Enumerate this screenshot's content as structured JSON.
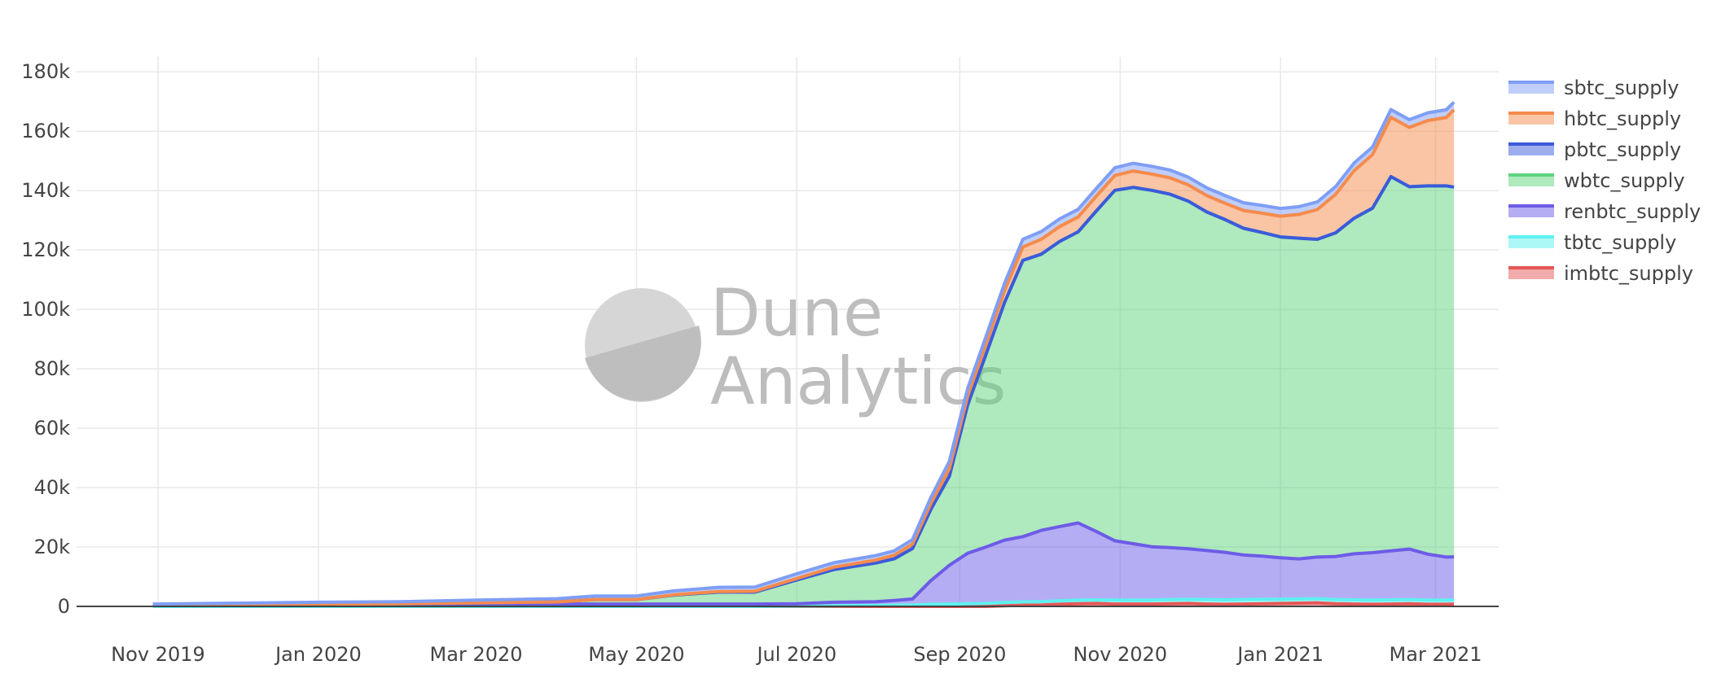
{
  "watermark": {
    "line1": "Dune",
    "line2": "Analytics"
  },
  "chart_data": {
    "type": "area",
    "stacked": true,
    "grid": true,
    "legend_position": "right",
    "xlabel": "",
    "ylabel": "",
    "x_range": [
      "2019-10-01",
      "2021-03-25"
    ],
    "ylim": [
      0,
      185000
    ],
    "y_ticks": [
      0,
      20000,
      40000,
      60000,
      80000,
      100000,
      120000,
      140000,
      160000,
      180000
    ],
    "y_tick_labels": [
      "0",
      "20k",
      "40k",
      "60k",
      "80k",
      "100k",
      "120k",
      "140k",
      "160k",
      "180k"
    ],
    "x_ticks": [
      "2019-11-01",
      "2020-01-01",
      "2020-03-01",
      "2020-05-01",
      "2020-07-01",
      "2020-09-01",
      "2020-11-01",
      "2021-01-01",
      "2021-03-01"
    ],
    "x_tick_labels": [
      "Nov 2019",
      "Jan 2020",
      "Mar 2020",
      "May 2020",
      "Jul 2020",
      "Sep 2020",
      "Nov 2020",
      "Jan 2021",
      "Mar 2021"
    ],
    "x": [
      "2019-10-30",
      "2019-12-01",
      "2020-01-01",
      "2020-02-01",
      "2020-03-01",
      "2020-04-01",
      "2020-04-15",
      "2020-05-01",
      "2020-05-15",
      "2020-06-01",
      "2020-06-15",
      "2020-07-01",
      "2020-07-15",
      "2020-07-31",
      "2020-08-07",
      "2020-08-14",
      "2020-08-21",
      "2020-08-28",
      "2020-09-04",
      "2020-09-11",
      "2020-09-18",
      "2020-09-25",
      "2020-10-02",
      "2020-10-09",
      "2020-10-16",
      "2020-10-23",
      "2020-10-30",
      "2020-11-06",
      "2020-11-13",
      "2020-11-20",
      "2020-11-27",
      "2020-12-04",
      "2020-12-11",
      "2020-12-18",
      "2020-12-25",
      "2021-01-01",
      "2021-01-08",
      "2021-01-15",
      "2021-01-22",
      "2021-01-29",
      "2021-02-05",
      "2021-02-12",
      "2021-02-19",
      "2021-02-26",
      "2021-03-05",
      "2021-03-08"
    ],
    "series": [
      {
        "name": "imbtc_supply",
        "color": "#e45756",
        "values": [
          0,
          0,
          0,
          0,
          0,
          0,
          0,
          0,
          0,
          0,
          0,
          0,
          0,
          0,
          0,
          0,
          0,
          0,
          0,
          0,
          200,
          400,
          500,
          700,
          900,
          1000,
          800,
          800,
          800,
          900,
          1000,
          800,
          700,
          800,
          900,
          1000,
          1100,
          1200,
          900,
          800,
          700,
          800,
          900,
          700,
          700,
          800
        ]
      },
      {
        "name": "tbtc_supply",
        "color": "#5ef0f0",
        "values": [
          0,
          0,
          0,
          0,
          0,
          0,
          0,
          0,
          0,
          0,
          0,
          100,
          200,
          300,
          400,
          500,
          700,
          800,
          900,
          1000,
          1100,
          1100,
          1100,
          1200,
          1200,
          1200,
          1300,
          1300,
          1300,
          1400,
          1400,
          1500,
          1500,
          1500,
          1500,
          1400,
          1400,
          1400,
          1400,
          1400,
          1400,
          1400,
          1400,
          1400,
          1400,
          1400
        ]
      },
      {
        "name": "renbtc_supply",
        "color": "#6c5ce7",
        "values": [
          300,
          400,
          500,
          600,
          700,
          800,
          800,
          800,
          800,
          800,
          800,
          800,
          1200,
          1300,
          1600,
          2000,
          8000,
          13000,
          17000,
          19000,
          21000,
          22000,
          24000,
          25000,
          26000,
          23000,
          20000,
          19000,
          18000,
          17500,
          17000,
          16500,
          16000,
          15000,
          14500,
          14000,
          13500,
          14000,
          14500,
          15500,
          16000,
          16500,
          17000,
          15500,
          14500,
          14500
        ]
      },
      {
        "name": "wbtc_supply",
        "color": "#5fd47e",
        "values": [
          0,
          100,
          200,
          300,
          500,
          700,
          1500,
          1500,
          3000,
          4000,
          4000,
          8000,
          11000,
          13000,
          14000,
          17000,
          24000,
          30000,
          50000,
          65000,
          80000,
          93000,
          93000,
          96000,
          98000,
          108000,
          118000,
          120000,
          120000,
          119000,
          117000,
          114000,
          112000,
          110000,
          109000,
          108000,
          108000,
          107000,
          109000,
          113000,
          116000,
          126000,
          122000,
          124000,
          125000,
          124500
        ]
      },
      {
        "name": "pbtc_supply",
        "color": "#3b5bdb",
        "values": [
          0,
          0,
          0,
          0,
          0,
          0,
          0,
          0,
          0,
          0,
          0,
          0,
          0,
          0,
          0,
          0,
          0,
          0,
          0,
          0,
          0,
          0,
          0,
          0,
          0,
          0,
          0,
          0,
          0,
          0,
          0,
          0,
          0,
          0,
          0,
          0,
          0,
          0,
          0,
          0,
          0,
          0,
          0,
          0,
          0,
          0
        ]
      },
      {
        "name": "hbtc_supply",
        "color": "#f58b4c",
        "values": [
          0,
          0,
          0,
          0,
          0,
          0,
          0,
          0,
          100,
          200,
          300,
          500,
          800,
          1000,
          1200,
          1500,
          2000,
          2500,
          3000,
          3500,
          4000,
          4500,
          5000,
          5000,
          5000,
          5000,
          5000,
          5500,
          5500,
          5500,
          5500,
          5500,
          5500,
          6000,
          6500,
          7000,
          8000,
          10000,
          13000,
          16000,
          18000,
          20000,
          20000,
          22000,
          23000,
          26000
        ]
      },
      {
        "name": "sbtc_supply",
        "color": "#7f9ef5",
        "values": [
          500,
          600,
          700,
          700,
          900,
          1100,
          1200,
          1200,
          1300,
          1400,
          1400,
          1600,
          1500,
          1500,
          1500,
          1500,
          2000,
          2500,
          2500,
          2500,
          2500,
          2600,
          2600,
          2600,
          2600,
          2600,
          2600,
          2600,
          2600,
          2600,
          2600,
          2600,
          2600,
          2600,
          2600,
          2600,
          2600,
          2600,
          2600,
          2600,
          2600,
          2600,
          2600,
          2600,
          2600,
          2600
        ]
      }
    ]
  }
}
